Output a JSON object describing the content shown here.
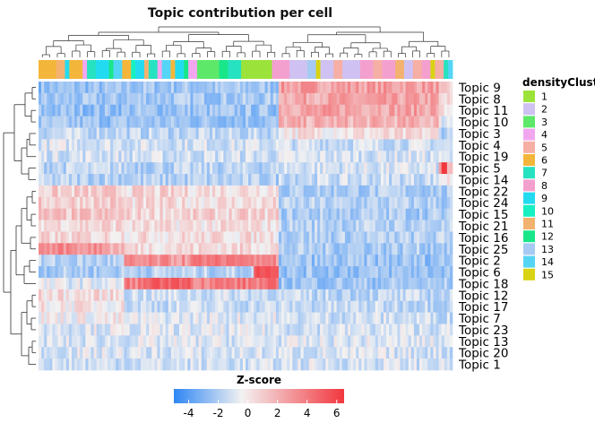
{
  "chart_data": {
    "type": "heatmap",
    "title": "Topic contribution per cell",
    "rows": [
      "Topic 9",
      "Topic 8",
      "Topic 11",
      "Topic 10",
      "Topic 3",
      "Topic 4",
      "Topic 19",
      "Topic 5",
      "Topic 14",
      "Topic 22",
      "Topic 24",
      "Topic 15",
      "Topic 21",
      "Topic 16",
      "Topic 25",
      "Topic 2",
      "Topic 6",
      "Topic 18",
      "Topic 12",
      "Topic 17",
      "Topic 7",
      "Topic 23",
      "Topic 13",
      "Topic 20",
      "Topic 1"
    ],
    "annotation_legend": {
      "title": "densityClust",
      "entries": [
        {
          "label": "1",
          "color": "#9BE33A"
        },
        {
          "label": "2",
          "color": "#CFC2F2"
        },
        {
          "label": "3",
          "color": "#5EE86A"
        },
        {
          "label": "4",
          "color": "#F3A6F0"
        },
        {
          "label": "5",
          "color": "#F6AFA4"
        },
        {
          "label": "6",
          "color": "#F4B63A"
        },
        {
          "label": "7",
          "color": "#27E2C0"
        },
        {
          "label": "8",
          "color": "#F4A0CF"
        },
        {
          "label": "9",
          "color": "#23DBF0"
        },
        {
          "label": "10",
          "color": "#16F0C2"
        },
        {
          "label": "11",
          "color": "#F3B26F"
        },
        {
          "label": "12",
          "color": "#19E689"
        },
        {
          "label": "13",
          "color": "#A7CAF2"
        },
        {
          "label": "14",
          "color": "#55D5F6"
        },
        {
          "label": "15",
          "color": "#D8D313"
        }
      ]
    },
    "column_segments": [
      {
        "cluster": "6",
        "width": 0.04
      },
      {
        "cluster": "11",
        "width": 0.02
      },
      {
        "cluster": "9",
        "width": 0.01
      },
      {
        "cluster": "6",
        "width": 0.03
      },
      {
        "cluster": "4",
        "width": 0.01
      },
      {
        "cluster": "7",
        "width": 0.02
      },
      {
        "cluster": "9",
        "width": 0.03
      },
      {
        "cluster": "12",
        "width": 0.01
      },
      {
        "cluster": "14",
        "width": 0.02
      },
      {
        "cluster": "6",
        "width": 0.02
      },
      {
        "cluster": "10",
        "width": 0.01
      },
      {
        "cluster": "9",
        "width": 0.02
      },
      {
        "cluster": "11",
        "width": 0.01
      },
      {
        "cluster": "7",
        "width": 0.02
      },
      {
        "cluster": "4",
        "width": 0.01
      },
      {
        "cluster": "14",
        "width": 0.02
      },
      {
        "cluster": "6",
        "width": 0.01
      },
      {
        "cluster": "9",
        "width": 0.02
      },
      {
        "cluster": "12",
        "width": 0.01
      },
      {
        "cluster": "4",
        "width": 0.02
      },
      {
        "cluster": "3",
        "width": 0.05
      },
      {
        "cluster": "12",
        "width": 0.02
      },
      {
        "cluster": "7",
        "width": 0.03
      },
      {
        "cluster": "1",
        "width": 0.07
      },
      {
        "cluster": "8",
        "width": 0.04
      },
      {
        "cluster": "2",
        "width": 0.04
      },
      {
        "cluster": "13",
        "width": 0.02
      },
      {
        "cluster": "15",
        "width": 0.01
      },
      {
        "cluster": "2",
        "width": 0.03
      },
      {
        "cluster": "5",
        "width": 0.02
      },
      {
        "cluster": "2",
        "width": 0.04
      },
      {
        "cluster": "8",
        "width": 0.03
      },
      {
        "cluster": "5",
        "width": 0.02
      },
      {
        "cluster": "8",
        "width": 0.03
      },
      {
        "cluster": "11",
        "width": 0.02
      },
      {
        "cluster": "2",
        "width": 0.02
      },
      {
        "cluster": "5",
        "width": 0.02
      },
      {
        "cluster": "8",
        "width": 0.02
      },
      {
        "cluster": "15",
        "width": 0.01
      },
      {
        "cluster": "5",
        "width": 0.02
      },
      {
        "cluster": "7",
        "width": 0.01
      },
      {
        "cluster": "14",
        "width": 0.01
      }
    ],
    "zscore_legend": {
      "title": "Z-score",
      "ticks": [
        "-4",
        "-2",
        "0",
        "2",
        "4",
        "6"
      ],
      "range": [
        -5,
        6.5
      ],
      "colors": {
        "low": "#3A8EF5",
        "mid": "#F3F2F2",
        "high": "#F2373E"
      }
    },
    "row_block_pattern": [
      [
        -1.6,
        -1.4,
        2.0,
        0.5
      ],
      [
        -1.5,
        -1.3,
        1.8,
        0.4
      ],
      [
        -1.6,
        -1.5,
        1.9,
        0.3
      ],
      [
        -1.5,
        -1.5,
        1.5,
        -0.2
      ],
      [
        -0.8,
        -0.9,
        0.4,
        -1.0
      ],
      [
        -0.4,
        -0.5,
        -0.6,
        -0.7
      ],
      [
        -0.5,
        -0.6,
        -0.5,
        -0.6
      ],
      [
        -0.9,
        -1.0,
        -0.5,
        1.5
      ],
      [
        -1.0,
        -1.1,
        -0.7,
        0.2
      ],
      [
        0.8,
        0.6,
        -1.2,
        -1.3
      ],
      [
        0.9,
        0.5,
        -1.1,
        -1.2
      ],
      [
        1.0,
        0.7,
        -1.2,
        -1.3
      ],
      [
        0.7,
        0.4,
        -1.0,
        -1.1
      ],
      [
        0.6,
        0.5,
        -1.1,
        -1.0
      ],
      [
        1.6,
        0.6,
        -1.2,
        -1.2
      ],
      [
        -1.1,
        2.2,
        -1.5,
        -1.4
      ],
      [
        -1.2,
        -1.0,
        -1.5,
        -1.4
      ],
      [
        -0.3,
        2.8,
        -1.4,
        -1.3
      ],
      [
        0.5,
        -0.6,
        -0.9,
        -1.0
      ],
      [
        0.3,
        -0.7,
        -0.8,
        -0.9
      ],
      [
        0.1,
        -0.3,
        -0.6,
        -0.7
      ],
      [
        -0.3,
        -0.4,
        -0.5,
        -0.6
      ],
      [
        -0.5,
        -0.4,
        -0.4,
        -0.5
      ],
      [
        -0.4,
        -0.5,
        -0.5,
        -0.6
      ],
      [
        -0.6,
        -0.6,
        -0.5,
        -0.6
      ]
    ]
  }
}
